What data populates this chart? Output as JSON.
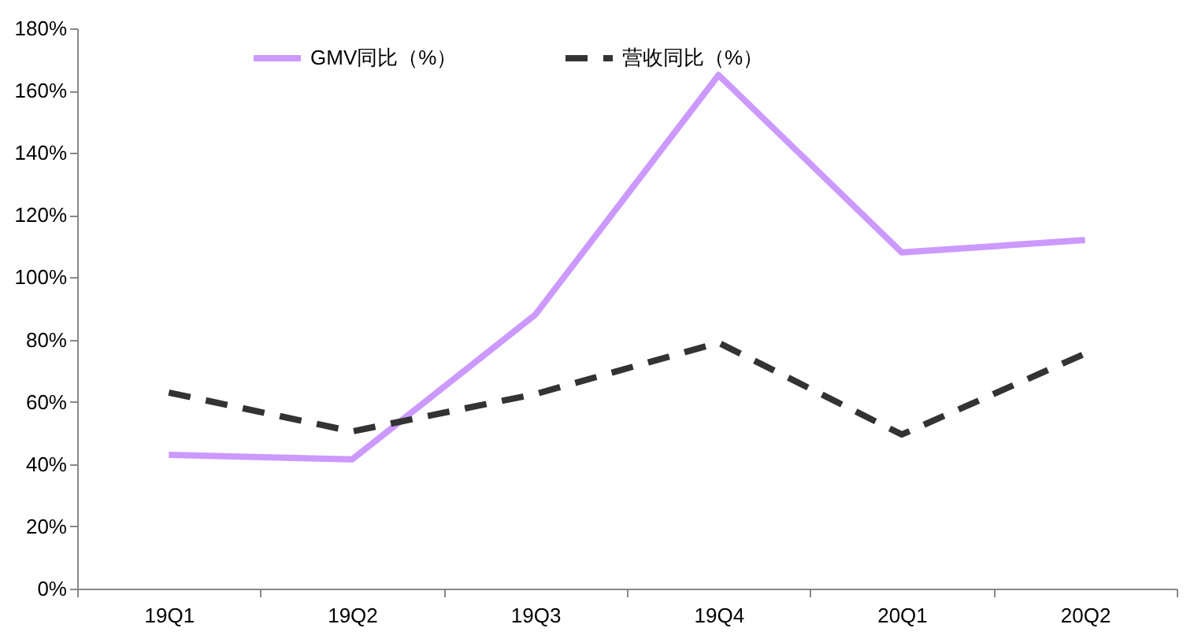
{
  "chart_data": {
    "type": "line",
    "categories": [
      "19Q1",
      "19Q2",
      "19Q3",
      "19Q4",
      "20Q1",
      "20Q2"
    ],
    "series": [
      {
        "name": "GMV同比（%）",
        "color": "#cc99ff",
        "line_style": "solid",
        "values": [
          43,
          41.5,
          88,
          165,
          108,
          112
        ]
      },
      {
        "name": "营收同比（%）",
        "color": "#333333",
        "line_style": "dashed",
        "values": [
          63,
          50.5,
          62.5,
          79,
          49.5,
          75.5
        ]
      }
    ],
    "ylim": [
      0,
      180
    ],
    "yticks": [
      {
        "value": 0,
        "label": "0%"
      },
      {
        "value": 20,
        "label": "20%"
      },
      {
        "value": 40,
        "label": "40%"
      },
      {
        "value": 60,
        "label": "60%"
      },
      {
        "value": 80,
        "label": "80%"
      },
      {
        "value": 100,
        "label": "100%"
      },
      {
        "value": 120,
        "label": "120%"
      },
      {
        "value": 140,
        "label": "140%"
      },
      {
        "value": 160,
        "label": "160%"
      },
      {
        "value": 180,
        "label": "180%"
      }
    ],
    "grid": false,
    "legend": "top",
    "marker": "none"
  }
}
